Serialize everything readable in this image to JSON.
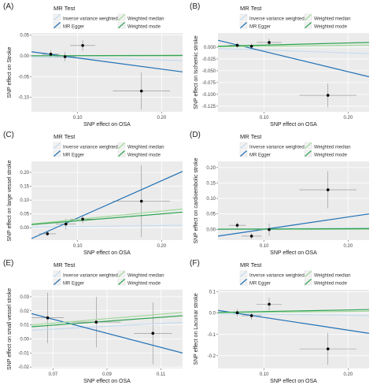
{
  "colors": {
    "ivw": "#c6dbef",
    "egger": "#2171b5",
    "median": "#a1d99b",
    "mode": "#31a354",
    "panel_bg": "#ebebeb",
    "grid": "#ffffff",
    "point": "#000000",
    "errorbar": "#8c8c8c"
  },
  "legend": {
    "title": "MR Test",
    "items": [
      {
        "key": "ivw",
        "label": "Inverse variance weighted"
      },
      {
        "key": "median",
        "label": "Weighted median"
      },
      {
        "key": "egger",
        "label": "MR Egger"
      },
      {
        "key": "mode",
        "label": "Weighted mode"
      }
    ]
  },
  "chart_data": [
    {
      "type": "scatter",
      "panel_label": "(A)",
      "xlabel": "SNP effect on OSA",
      "ylabel": "SNP effect on Stroke",
      "xlim": [
        0.045,
        0.225
      ],
      "ylim": [
        -0.135,
        0.055
      ],
      "xticks": [
        0.1,
        0.2
      ],
      "xtick_labels": [
        "0.10",
        "0.20"
      ],
      "yticks": [
        0.05,
        0.0,
        -0.05,
        -0.1
      ],
      "ytick_labels": [
        "0.05",
        "0.00",
        "-0.05",
        "-0.10"
      ],
      "points": [
        {
          "x": 0.068,
          "y": 0.004,
          "xerr": 0.01,
          "yerr": 0.009
        },
        {
          "x": 0.085,
          "y": -0.002,
          "xerr": 0.012,
          "yerr": 0.011
        },
        {
          "x": 0.106,
          "y": 0.025,
          "xerr": 0.015,
          "yerr": 0.013
        },
        {
          "x": 0.176,
          "y": -0.085,
          "xerr": 0.034,
          "yerr": 0.045
        }
      ],
      "lines": [
        {
          "key": "ivw",
          "slope": -0.05,
          "intercept": 0
        },
        {
          "key": "egger",
          "slope": -0.27,
          "intercept": 0.022
        },
        {
          "key": "median",
          "slope": 0.0,
          "intercept": 0
        },
        {
          "key": "mode",
          "slope": 0.005,
          "intercept": 0
        }
      ]
    },
    {
      "type": "scatter",
      "panel_label": "(B)",
      "xlabel": "SNP effect on OSA",
      "ylabel": "SNP effect on Ischemic stroke",
      "xlim": [
        0.045,
        0.225
      ],
      "ylim": [
        -0.137,
        0.03
      ],
      "xticks": [
        0.1,
        0.2
      ],
      "xtick_labels": [
        "0.10",
        "0.20"
      ],
      "yticks": [
        0.0,
        -0.025,
        -0.05,
        -0.075,
        -0.1,
        -0.125
      ],
      "ytick_labels": [
        "0.000",
        "-0.025",
        "-0.050",
        "-0.075",
        "-0.100",
        "-0.125"
      ],
      "points": [
        {
          "x": 0.068,
          "y": 0.004,
          "xerr": 0.01,
          "yerr": 0.005
        },
        {
          "x": 0.085,
          "y": 0.002,
          "xerr": 0.012,
          "yerr": 0.006
        },
        {
          "x": 0.106,
          "y": 0.01,
          "xerr": 0.015,
          "yerr": 0.008
        },
        {
          "x": 0.176,
          "y": -0.102,
          "xerr": 0.034,
          "yerr": 0.025
        }
      ],
      "lines": [
        {
          "key": "ivw",
          "slope": -0.06,
          "intercept": 0
        },
        {
          "key": "egger",
          "slope": -0.43,
          "intercept": 0.034
        },
        {
          "key": "median",
          "slope": 0.02,
          "intercept": 0
        },
        {
          "key": "mode",
          "slope": 0.045,
          "intercept": 0
        }
      ]
    },
    {
      "type": "scatter",
      "panel_label": "(C)",
      "xlabel": "SNP effect on OSA",
      "ylabel": "SNP effect on large vessel stroke",
      "xlim": [
        0.045,
        0.225
      ],
      "ylim": [
        -0.045,
        0.24
      ],
      "xticks": [
        0.1,
        0.2
      ],
      "xtick_labels": [
        "0.10",
        "0.20"
      ],
      "yticks": [
        0.2,
        0.15,
        0.1,
        0.05,
        0.0
      ],
      "ytick_labels": [
        "0.20",
        "0.15",
        "0.10",
        "0.05",
        "0.00"
      ],
      "points": [
        {
          "x": 0.064,
          "y": -0.022,
          "xerr": 0.01,
          "yerr": 0.008
        },
        {
          "x": 0.086,
          "y": 0.013,
          "xerr": 0.012,
          "yerr": 0.019
        },
        {
          "x": 0.106,
          "y": 0.031,
          "xerr": 0.015,
          "yerr": 0.014
        },
        {
          "x": 0.176,
          "y": 0.096,
          "xerr": 0.034,
          "yerr": 0.13
        }
      ],
      "lines": [
        {
          "key": "ivw",
          "slope": 0.04,
          "intercept": 0
        },
        {
          "key": "egger",
          "slope": 1.35,
          "intercept": -0.1
        },
        {
          "key": "median",
          "slope": 0.3,
          "intercept": 0
        },
        {
          "key": "mode",
          "slope": 0.25,
          "intercept": 0
        }
      ]
    },
    {
      "type": "scatter",
      "panel_label": "(D)",
      "xlabel": "SNP effect on OSA",
      "ylabel": "SNP effect on cardioembolic stroke",
      "xlim": [
        0.045,
        0.225
      ],
      "ylim": [
        -0.035,
        0.22
      ],
      "xticks": [
        0.1,
        0.2
      ],
      "xtick_labels": [
        "0.10",
        "0.20"
      ],
      "yticks": [
        0.2,
        0.15,
        0.1,
        0.05,
        0.0
      ],
      "ytick_labels": [
        "0.20",
        "0.15",
        "0.10",
        "0.05",
        "0.00"
      ],
      "points": [
        {
          "x": 0.068,
          "y": 0.013,
          "xerr": 0.01,
          "yerr": 0.009
        },
        {
          "x": 0.085,
          "y": -0.022,
          "xerr": 0.012,
          "yerr": 0.01
        },
        {
          "x": 0.106,
          "y": -0.001,
          "xerr": 0.015,
          "yerr": 0.02
        },
        {
          "x": 0.176,
          "y": 0.128,
          "xerr": 0.034,
          "yerr": 0.06
        }
      ],
      "lines": [
        {
          "key": "ivw",
          "slope": 0.02,
          "intercept": 0
        },
        {
          "key": "egger",
          "slope": 0.4,
          "intercept": -0.04
        },
        {
          "key": "median",
          "slope": 0.0,
          "intercept": 0
        },
        {
          "key": "mode",
          "slope": 0.01,
          "intercept": 0
        }
      ]
    },
    {
      "type": "scatter",
      "panel_label": "(E)",
      "xlabel": "SNP effect on OSA",
      "ylabel": "SNP effect on small vessel stroke",
      "xlim": [
        0.062,
        0.118
      ],
      "ylim": [
        -0.021,
        0.035
      ],
      "xticks": [
        0.07,
        0.09,
        0.11
      ],
      "xtick_labels": [
        "0.07",
        "0.09",
        "0.11"
      ],
      "yticks": [
        0.03,
        0.02,
        0.01,
        0.0,
        -0.01,
        -0.02
      ],
      "ytick_labels": [
        "0.03",
        "0.02",
        "0.01",
        "0.00",
        "-0.01",
        "-0.02"
      ],
      "points": [
        {
          "x": 0.068,
          "y": 0.015,
          "xerr": 0.006,
          "yerr": 0.018
        },
        {
          "x": 0.086,
          "y": 0.012,
          "xerr": 0.009,
          "yerr": 0.018
        },
        {
          "x": 0.107,
          "y": 0.004,
          "xerr": 0.007,
          "yerr": 0.022
        }
      ],
      "lines": [
        {
          "key": "ivw",
          "slope": 0.1,
          "intercept": 0
        },
        {
          "key": "egger",
          "slope": -0.5,
          "intercept": 0.049
        },
        {
          "key": "median",
          "slope": 0.16,
          "intercept": 0
        },
        {
          "key": "mode",
          "slope": 0.14,
          "intercept": 0
        }
      ]
    },
    {
      "type": "scatter",
      "panel_label": "(F)",
      "xlabel": "SNP effect on OSA",
      "ylabel": "SNP effect on Lacunar stroke",
      "xlim": [
        0.045,
        0.225
      ],
      "ylim": [
        -0.26,
        0.11
      ],
      "xticks": [
        0.1,
        0.2
      ],
      "xtick_labels": [
        "0.10",
        "0.20"
      ],
      "yticks": [
        0.1,
        0.0,
        -0.1,
        -0.2
      ],
      "ytick_labels": [
        "0.1",
        "0.0",
        "-0.1",
        "-0.2"
      ],
      "points": [
        {
          "x": 0.068,
          "y": 0.002,
          "xerr": 0.01,
          "yerr": 0.018
        },
        {
          "x": 0.085,
          "y": -0.012,
          "xerr": 0.012,
          "yerr": 0.02
        },
        {
          "x": 0.106,
          "y": 0.042,
          "xerr": 0.015,
          "yerr": 0.03
        },
        {
          "x": 0.176,
          "y": -0.168,
          "xerr": 0.034,
          "yerr": 0.075
        }
      ],
      "lines": [
        {
          "key": "ivw",
          "slope": -0.05,
          "intercept": 0
        },
        {
          "key": "egger",
          "slope": -0.6,
          "intercept": 0.04
        },
        {
          "key": "median",
          "slope": 0.04,
          "intercept": 0
        },
        {
          "key": "mode",
          "slope": 0.075,
          "intercept": 0
        }
      ]
    }
  ]
}
